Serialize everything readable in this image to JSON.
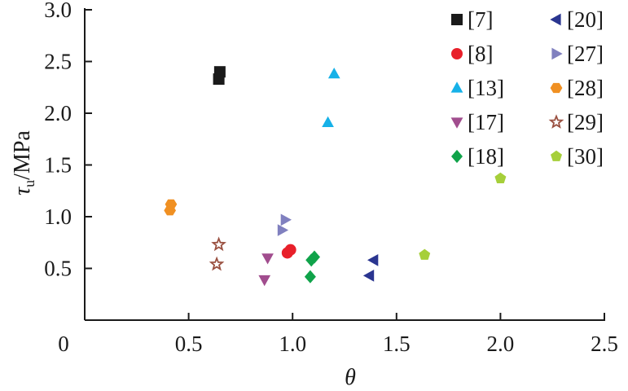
{
  "chart_data": {
    "type": "scatter",
    "title": "",
    "xlabel": "θ",
    "ylabel_main": "τ",
    "ylabel_sub": "u",
    "ylabel_unit": "/MPa",
    "xlim": [
      0,
      2.5
    ],
    "ylim": [
      0,
      3.0
    ],
    "xticks": [
      {
        "value": 0,
        "label": "0"
      },
      {
        "value": 0.5,
        "label": "0.5"
      },
      {
        "value": 1.0,
        "label": "1.0"
      },
      {
        "value": 1.5,
        "label": "1.5"
      },
      {
        "value": 2.0,
        "label": "2.0"
      },
      {
        "value": 2.5,
        "label": "2.5"
      }
    ],
    "yticks": [
      {
        "value": 0.5,
        "label": "0.5"
      },
      {
        "value": 1.0,
        "label": "1.0"
      },
      {
        "value": 1.5,
        "label": "1.5"
      },
      {
        "value": 2.0,
        "label": "2.0"
      },
      {
        "value": 2.5,
        "label": "2.5"
      },
      {
        "value": 3.0,
        "label": "3.0"
      }
    ],
    "grid": false,
    "legend_position": "top-right",
    "series": [
      {
        "name": "[7]",
        "marker": "square",
        "color": "#1a1a1a",
        "points": [
          {
            "x": 0.65,
            "y": 2.4
          },
          {
            "x": 0.645,
            "y": 2.33
          }
        ]
      },
      {
        "name": "[8]",
        "marker": "circle",
        "color": "#e8202a",
        "points": [
          {
            "x": 0.99,
            "y": 0.68
          },
          {
            "x": 0.975,
            "y": 0.65
          }
        ]
      },
      {
        "name": "[13]",
        "marker": "triangle-up",
        "color": "#16b1e8",
        "points": [
          {
            "x": 1.2,
            "y": 2.38
          },
          {
            "x": 1.17,
            "y": 1.91
          }
        ]
      },
      {
        "name": "[17]",
        "marker": "triangle-down",
        "color": "#a14d8e",
        "points": [
          {
            "x": 0.88,
            "y": 0.6
          },
          {
            "x": 0.865,
            "y": 0.39
          }
        ]
      },
      {
        "name": "[18]",
        "marker": "diamond",
        "color": "#10a34a",
        "points": [
          {
            "x": 1.105,
            "y": 0.61
          },
          {
            "x": 1.09,
            "y": 0.58
          },
          {
            "x": 1.085,
            "y": 0.42
          }
        ]
      },
      {
        "name": "[20]",
        "marker": "triangle-left",
        "color": "#2a3590",
        "points": [
          {
            "x": 1.39,
            "y": 0.58
          },
          {
            "x": 1.37,
            "y": 0.43
          }
        ]
      },
      {
        "name": "[27]",
        "marker": "triangle-right",
        "color": "#8080bf",
        "points": [
          {
            "x": 0.965,
            "y": 0.97
          },
          {
            "x": 0.95,
            "y": 0.87
          }
        ]
      },
      {
        "name": "[28]",
        "marker": "hexagon",
        "color": "#f09022",
        "points": [
          {
            "x": 0.415,
            "y": 1.12
          },
          {
            "x": 0.41,
            "y": 1.06
          }
        ]
      },
      {
        "name": "[29]",
        "marker": "star",
        "color": "#9a5040",
        "points": [
          {
            "x": 0.645,
            "y": 0.73
          },
          {
            "x": 0.635,
            "y": 0.54
          }
        ]
      },
      {
        "name": "[30]",
        "marker": "pentagon",
        "color": "#a6cf3a",
        "points": [
          {
            "x": 2.0,
            "y": 1.37
          },
          {
            "x": 1.635,
            "y": 0.63
          }
        ]
      }
    ]
  }
}
